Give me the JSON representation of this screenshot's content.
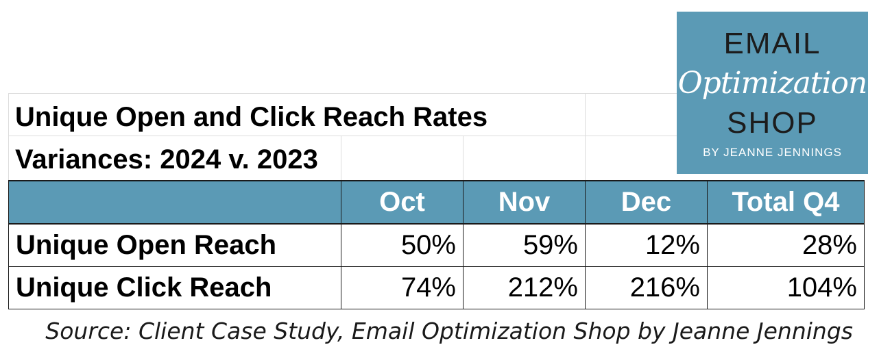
{
  "title": {
    "line1": "Unique Open  and Click Reach Rates",
    "line2": "Variances: 2024 v. 2023"
  },
  "chart_data": {
    "type": "table",
    "columns": [
      "Oct",
      "Nov",
      "Dec",
      "Total Q4"
    ],
    "rows": [
      {
        "label": "Unique Open Reach",
        "values": [
          "50%",
          "59%",
          "12%",
          "28%"
        ]
      },
      {
        "label": "Unique Click Reach",
        "values": [
          "74%",
          "212%",
          "216%",
          "104%"
        ]
      }
    ]
  },
  "logo": {
    "line1": "EMAIL",
    "line2": "Optimization",
    "line3": "SHOP",
    "line4": "BY JEANNE JENNINGS"
  },
  "source": "Source: Client Case Study, Email Optimization Shop by Jeanne Jennings",
  "colors": {
    "header_fill": "#5b9ab5",
    "header_text": "#ffffff"
  }
}
